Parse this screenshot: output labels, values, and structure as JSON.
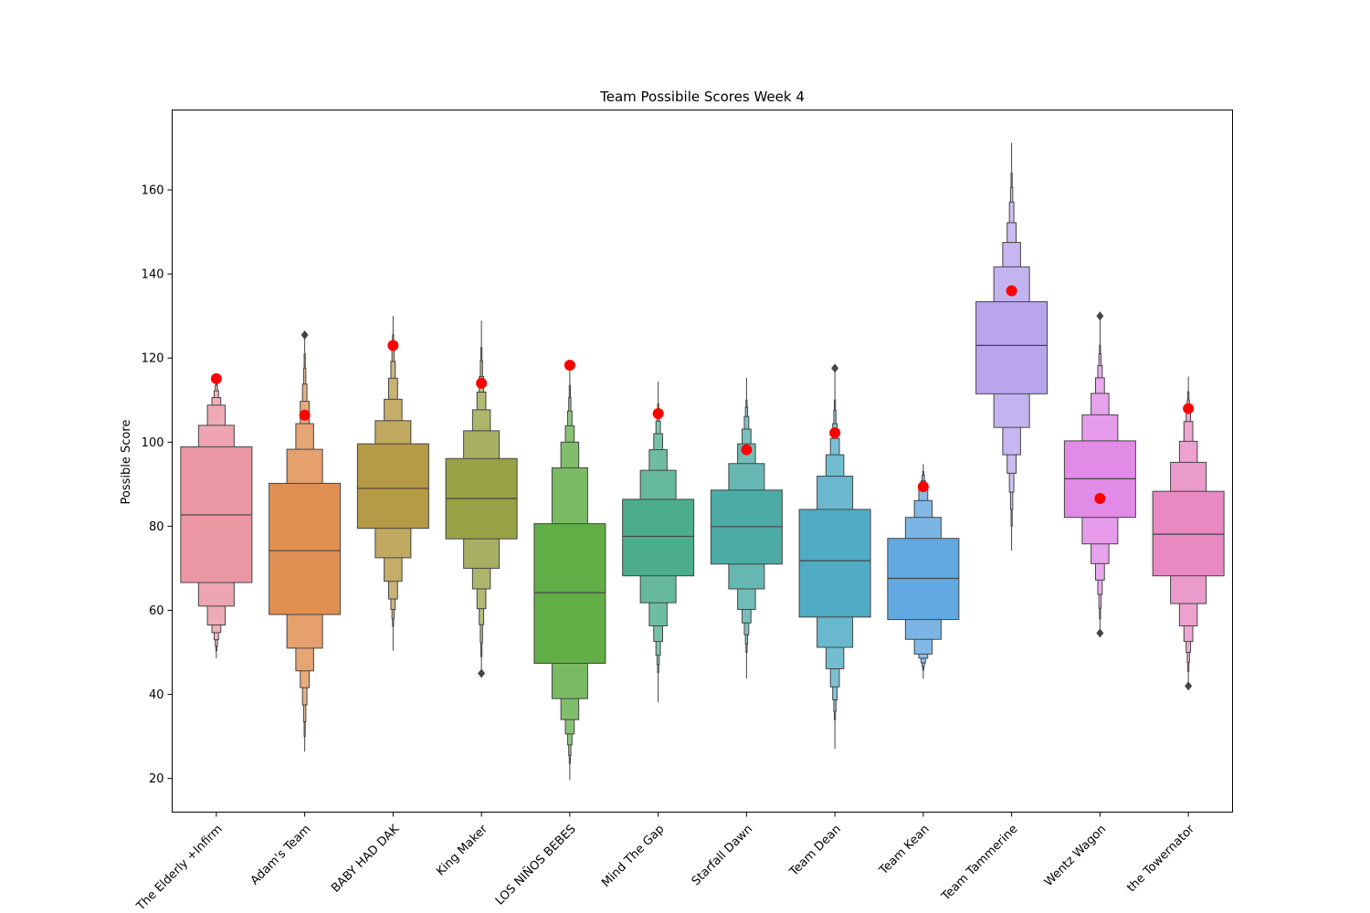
{
  "chart_data": {
    "type": "boxenplot",
    "title": "Team Possibile Scores Week 4",
    "xlabel": "",
    "ylabel": "Possible Score",
    "ylim": [
      12,
      179
    ],
    "yticks": [
      20,
      40,
      60,
      80,
      100,
      120,
      140,
      160
    ],
    "grid": false,
    "legend": "none",
    "categories": [
      "The Elderly +Infirm",
      "Adam's Team",
      "BABY HAD DAK",
      "King Maker",
      "LOS NIÑOS BEBES",
      "Mind The Gap",
      "Starfall Dawn",
      "Team Dean",
      "Team Kean",
      "Team Tammerine",
      "Wentz Wagon",
      "the Towernator"
    ],
    "colors": [
      "#ea96a3",
      "#e08f53",
      "#b69a45",
      "#98a246",
      "#62ae47",
      "#4bad8a",
      "#4caba5",
      "#4facc4",
      "#62a8e1",
      "#b8a5ec",
      "#e18be7",
      "#e889c2"
    ],
    "series": [
      {
        "name": "",
        "median": [
          82.7,
          74.2,
          89.0,
          86.6,
          64.2,
          77.6,
          79.9,
          71.8,
          67.6,
          123.0,
          91.3,
          78.1
        ],
        "levels": [
          [
            [
              66.6,
              98.9
            ],
            [
              61.0,
              104.0
            ],
            [
              56.5,
              108.8
            ],
            [
              54.7,
              110.6
            ],
            [
              53.0,
              112.2
            ],
            [
              51.5,
              113.5
            ],
            [
              50.4,
              114.4
            ]
          ],
          [
            [
              59.0,
              90.2
            ],
            [
              51.0,
              98.3
            ],
            [
              45.6,
              104.4
            ],
            [
              41.6,
              109.7
            ],
            [
              37.5,
              113.8
            ],
            [
              33.5,
              117.6
            ],
            [
              30.0,
              121.0
            ]
          ],
          [
            [
              79.5,
              99.6
            ],
            [
              72.5,
              105.1
            ],
            [
              66.9,
              110.2
            ],
            [
              62.7,
              115.2
            ],
            [
              60.2,
              119.2
            ],
            [
              58.0,
              122.8
            ],
            [
              56.2,
              125.5
            ]
          ],
          [
            [
              77.0,
              96.1
            ],
            [
              70.0,
              102.7
            ],
            [
              65.1,
              107.7
            ],
            [
              60.4,
              111.9
            ],
            [
              56.6,
              115.6
            ],
            [
              52.3,
              119.3
            ],
            [
              49.0,
              122.5
            ]
          ],
          [
            [
              47.4,
              80.6
            ],
            [
              39.0,
              93.9
            ],
            [
              34.0,
              100.0
            ],
            [
              30.6,
              103.9
            ],
            [
              28.0,
              107.4
            ],
            [
              25.5,
              110.6
            ],
            [
              23.6,
              113.5
            ]
          ],
          [
            [
              68.2,
              86.4
            ],
            [
              61.8,
              93.3
            ],
            [
              56.3,
              98.2
            ],
            [
              52.6,
              102.0
            ],
            [
              49.3,
              105.0
            ],
            [
              47.1,
              107.2
            ],
            [
              45.2,
              109.1
            ]
          ],
          [
            [
              71.0,
              88.6
            ],
            [
              65.1,
              94.9
            ],
            [
              60.2,
              99.6
            ],
            [
              57.0,
              103.1
            ],
            [
              54.2,
              106.1
            ],
            [
              52.0,
              108.3
            ],
            [
              50.0,
              110.0
            ]
          ],
          [
            [
              58.4,
              84.0
            ],
            [
              51.2,
              91.9
            ],
            [
              46.1,
              97.0
            ],
            [
              41.8,
              100.9
            ],
            [
              38.7,
              104.4
            ],
            [
              36.0,
              107.5
            ],
            [
              34.0,
              110.0
            ]
          ],
          [
            [
              57.8,
              77.1
            ],
            [
              53.1,
              82.1
            ],
            [
              49.6,
              86.1
            ],
            [
              48.6,
              89.2
            ],
            [
              47.5,
              90.8
            ],
            [
              46.6,
              92.1
            ],
            [
              45.8,
              93.0
            ]
          ],
          [
            [
              111.5,
              133.4
            ],
            [
              103.5,
              141.7
            ],
            [
              97.0,
              147.5
            ],
            [
              92.6,
              152.2
            ],
            [
              88.1,
              157.1
            ],
            [
              84.0,
              160.6
            ],
            [
              80.0,
              164.0
            ]
          ],
          [
            [
              82.1,
              100.3
            ],
            [
              75.8,
              106.5
            ],
            [
              71.1,
              111.6
            ],
            [
              67.2,
              115.3
            ],
            [
              63.8,
              118.2
            ],
            [
              60.5,
              121.0
            ],
            [
              58.0,
              123.0
            ]
          ],
          [
            [
              68.2,
              88.3
            ],
            [
              61.6,
              95.2
            ],
            [
              56.3,
              100.2
            ],
            [
              52.6,
              104.9
            ],
            [
              50.0,
              107.9
            ],
            [
              47.6,
              110.0
            ],
            [
              45.5,
              112.0
            ]
          ]
        ],
        "whisker": [
          [
            48.6,
            115.0
          ],
          [
            26.4,
            125.5
          ],
          [
            50.4,
            130.0
          ],
          [
            45.0,
            128.9
          ],
          [
            19.6,
            119.5
          ],
          [
            38.1,
            114.4
          ],
          [
            43.8,
            115.3
          ],
          [
            27.1,
            117.6
          ],
          [
            43.7,
            94.8
          ],
          [
            74.2,
            171.2
          ],
          [
            54.6,
            130.0
          ],
          [
            42.0,
            115.6
          ]
        ],
        "outliers": [
          [],
          [
            125.5
          ],
          [],
          [
            45.0
          ],
          [],
          [],
          [],
          [
            117.6
          ],
          [],
          [],
          [
            54.6,
            130.0
          ],
          [
            42.0
          ]
        ]
      },
      {
        "name": "",
        "color": "#ff0000",
        "values": [
          115.1,
          106.4,
          123.0,
          114.0,
          118.3,
          106.8,
          98.2,
          102.2,
          89.4,
          136.0,
          86.6,
          108.0
        ]
      }
    ]
  }
}
